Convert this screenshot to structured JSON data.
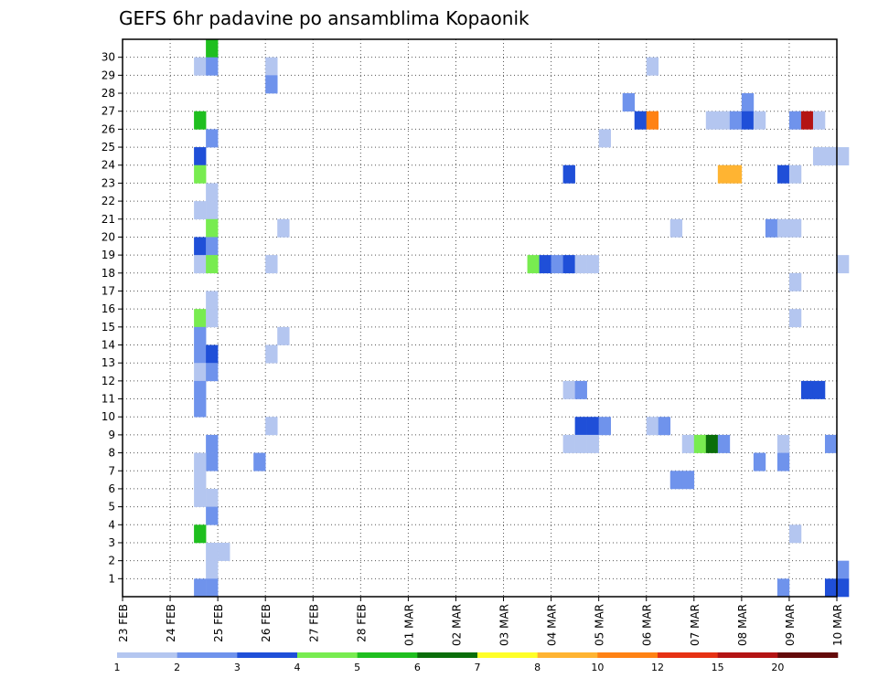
{
  "chart_data": {
    "type": "heatmap",
    "title": "GEFS 6hr padavine po ansamblima Kopaonik",
    "xlabel": "",
    "ylabel": "",
    "x_tick_labels": [
      "23 FEB",
      "24 FEB",
      "25 FEB",
      "26 FEB",
      "27 FEB",
      "28 FEB",
      "01 MAR",
      "02 MAR",
      "03 MAR",
      "04 MAR",
      "05 MAR",
      "06 MAR",
      "07 MAR",
      "08 MAR",
      "09 MAR",
      "10 MAR"
    ],
    "y_tick_labels": [
      "1",
      "2",
      "3",
      "4",
      "5",
      "6",
      "7",
      "8",
      "9",
      "10",
      "11",
      "12",
      "13",
      "14",
      "15",
      "16",
      "17",
      "18",
      "19",
      "20",
      "21",
      "22",
      "23",
      "24",
      "25",
      "26",
      "27",
      "28",
      "29",
      "30"
    ],
    "time_steps_per_day": 4,
    "num_time_steps": 61,
    "members": 30,
    "colorbar": {
      "levels": [
        "1",
        "2",
        "3",
        "4",
        "5",
        "6",
        "7",
        "8",
        "10",
        "12",
        "15",
        "20"
      ],
      "colors": [
        "#b4c6f0",
        "#6f93ec",
        "#1f4fd8",
        "#78ec50",
        "#1fbf1f",
        "#0a6e0a",
        "#ffff28",
        "#ffb432",
        "#ff8214",
        "#e63214",
        "#b41414",
        "#640a0a"
      ]
    },
    "note": "cells: [time_index, member, precipitation_mm]",
    "cells": [
      [
        7,
        30,
        5.5
      ],
      [
        6,
        29,
        1.5
      ],
      [
        7,
        29,
        2.5
      ],
      [
        12,
        29,
        1.5
      ],
      [
        44,
        29,
        1.5
      ],
      [
        12,
        28,
        2.5
      ],
      [
        42,
        27,
        2.5
      ],
      [
        52,
        27,
        2.5
      ],
      [
        6,
        26,
        5.5
      ],
      [
        43,
        26,
        3.5
      ],
      [
        44,
        26,
        11
      ],
      [
        49,
        26,
        1.5
      ],
      [
        50,
        26,
        1.5
      ],
      [
        51,
        26,
        2.5
      ],
      [
        52,
        26,
        3.5
      ],
      [
        53,
        26,
        1.5
      ],
      [
        56,
        26,
        2.5
      ],
      [
        57,
        26,
        16
      ],
      [
        58,
        26,
        1.5
      ],
      [
        7,
        25,
        2.5
      ],
      [
        40,
        25,
        1.5
      ],
      [
        6,
        24,
        3.5
      ],
      [
        58,
        24,
        1.5
      ],
      [
        59,
        24,
        1.5
      ],
      [
        60,
        24,
        1.5
      ],
      [
        6,
        23,
        4.5
      ],
      [
        37,
        23,
        3.5
      ],
      [
        50,
        23,
        9
      ],
      [
        51,
        23,
        9
      ],
      [
        55,
        23,
        3.5
      ],
      [
        56,
        23,
        1.5
      ],
      [
        7,
        22,
        1.5
      ],
      [
        6,
        21,
        1.5
      ],
      [
        7,
        21,
        1.5
      ],
      [
        7,
        20,
        4.5
      ],
      [
        13,
        20,
        1.5
      ],
      [
        46,
        20,
        1.5
      ],
      [
        54,
        20,
        2.5
      ],
      [
        55,
        20,
        1.5
      ],
      [
        56,
        20,
        1.5
      ],
      [
        6,
        19,
        3.5
      ],
      [
        7,
        19,
        2.5
      ],
      [
        6,
        18,
        1.5
      ],
      [
        7,
        18,
        4.5
      ],
      [
        12,
        18,
        1.5
      ],
      [
        34,
        18,
        4.5
      ],
      [
        35,
        18,
        3.5
      ],
      [
        36,
        18,
        2.5
      ],
      [
        37,
        18,
        3.5
      ],
      [
        38,
        18,
        1.5
      ],
      [
        39,
        18,
        1.5
      ],
      [
        60,
        18,
        1.5
      ],
      [
        56,
        17,
        1.5
      ],
      [
        7,
        16,
        1.5
      ],
      [
        6,
        15,
        4.5
      ],
      [
        7,
        15,
        1.5
      ],
      [
        56,
        15,
        1.5
      ],
      [
        6,
        14,
        2.5
      ],
      [
        13,
        14,
        1.5
      ],
      [
        6,
        13,
        2.5
      ],
      [
        7,
        13,
        3.5
      ],
      [
        12,
        13,
        1.5
      ],
      [
        6,
        12,
        1.5
      ],
      [
        7,
        12,
        2.5
      ],
      [
        6,
        11,
        2.5
      ],
      [
        37,
        11,
        1.5
      ],
      [
        38,
        11,
        2.5
      ],
      [
        57,
        11,
        3.5
      ],
      [
        58,
        11,
        3.5
      ],
      [
        6,
        10,
        2.5
      ],
      [
        12,
        9,
        1.5
      ],
      [
        38,
        9,
        3.5
      ],
      [
        39,
        9,
        3.5
      ],
      [
        40,
        9,
        2.5
      ],
      [
        44,
        9,
        1.5
      ],
      [
        45,
        9,
        2.5
      ],
      [
        7,
        8,
        2.5
      ],
      [
        37,
        8,
        1.5
      ],
      [
        38,
        8,
        1.5
      ],
      [
        39,
        8,
        1.5
      ],
      [
        47,
        8,
        1.5
      ],
      [
        48,
        8,
        4.5
      ],
      [
        49,
        8,
        6.5
      ],
      [
        50,
        8,
        2.5
      ],
      [
        55,
        8,
        1.5
      ],
      [
        59,
        8,
        2.5
      ],
      [
        7,
        7,
        2.5
      ],
      [
        11,
        7,
        2.5
      ],
      [
        6,
        7,
        1.5
      ],
      [
        53,
        7,
        2.5
      ],
      [
        55,
        7,
        2.5
      ],
      [
        6,
        6,
        1.5
      ],
      [
        46,
        6,
        2.5
      ],
      [
        47,
        6,
        2.5
      ],
      [
        6,
        5,
        1.5
      ],
      [
        7,
        5,
        1.5
      ],
      [
        7,
        4,
        2.5
      ],
      [
        6,
        3,
        5.5
      ],
      [
        56,
        3,
        1.5
      ],
      [
        7,
        2,
        1.5
      ],
      [
        8,
        2,
        1.5
      ],
      [
        7,
        1,
        1.5
      ],
      [
        60,
        1,
        2.5
      ],
      [
        6,
        0,
        2.5
      ],
      [
        7,
        0,
        2.5
      ],
      [
        55,
        0,
        2.5
      ],
      [
        59,
        0,
        3.5
      ],
      [
        60,
        0,
        3.5
      ]
    ]
  }
}
